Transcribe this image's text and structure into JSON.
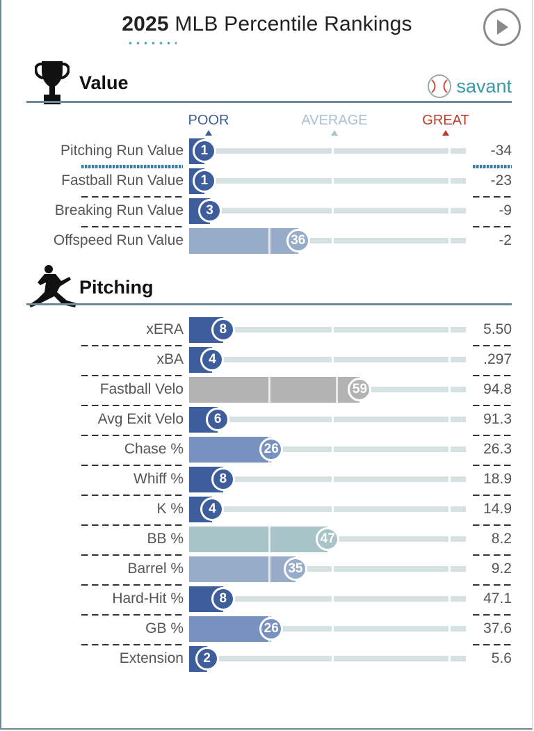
{
  "title": {
    "year": "2025",
    "rest": "MLB Percentile Rankings"
  },
  "icons": {
    "play": "play-icon",
    "trophy": "trophy-icon",
    "pitcher": "pitcher-silhouette-icon",
    "baseball": "baseball-icon"
  },
  "brand": "savant",
  "scale": {
    "poor": "POOR",
    "average": "AVERAGE",
    "great": "GREAT"
  },
  "colors": {
    "poor": "#3d5d9c",
    "average": "#a8c4cc",
    "great": "#c0392b",
    "neutral": "#b3b3b3",
    "rule": "#6b8a96",
    "brand": "#3a9aa6"
  },
  "sections": [
    {
      "title": "Value"
    },
    {
      "title": "Pitching"
    }
  ],
  "chart_data": {
    "type": "bar",
    "xlim": [
      0,
      100
    ],
    "groups": [
      {
        "name": "Value",
        "rows": [
          {
            "label": "Pitching Run Value",
            "percentile": 1,
            "value": "-34",
            "color": "#3d5d9c",
            "emphasis": true
          },
          {
            "label": "Fastball Run Value",
            "percentile": 1,
            "value": "-23",
            "color": "#3d5d9c"
          },
          {
            "label": "Breaking Run Value",
            "percentile": 3,
            "value": "-9",
            "color": "#3d5d9c"
          },
          {
            "label": "Offspeed Run Value",
            "percentile": 36,
            "value": "-2",
            "color": "#97acc8"
          }
        ]
      },
      {
        "name": "Pitching",
        "rows": [
          {
            "label": "xERA",
            "percentile": 8,
            "value": "5.50",
            "color": "#3d5d9c"
          },
          {
            "label": "xBA",
            "percentile": 4,
            "value": ".297",
            "color": "#3d5d9c"
          },
          {
            "label": "Fastball Velo",
            "percentile": 59,
            "value": "94.8",
            "color": "#b3b3b3"
          },
          {
            "label": "Avg Exit Velo",
            "percentile": 6,
            "value": "91.3",
            "color": "#3d5d9c"
          },
          {
            "label": "Chase %",
            "percentile": 26,
            "value": "26.3",
            "color": "#7892c0"
          },
          {
            "label": "Whiff %",
            "percentile": 8,
            "value": "18.9",
            "color": "#3d5d9c"
          },
          {
            "label": "K %",
            "percentile": 4,
            "value": "14.9",
            "color": "#3d5d9c"
          },
          {
            "label": "BB %",
            "percentile": 47,
            "value": "8.2",
            "color": "#a8c4c8"
          },
          {
            "label": "Barrel %",
            "percentile": 35,
            "value": "9.2",
            "color": "#97acc8"
          },
          {
            "label": "Hard-Hit %",
            "percentile": 8,
            "value": "47.1",
            "color": "#3d5d9c"
          },
          {
            "label": "GB %",
            "percentile": 26,
            "value": "37.6",
            "color": "#7892c0"
          },
          {
            "label": "Extension",
            "percentile": 2,
            "value": "5.6",
            "color": "#3d5d9c"
          }
        ]
      }
    ]
  }
}
